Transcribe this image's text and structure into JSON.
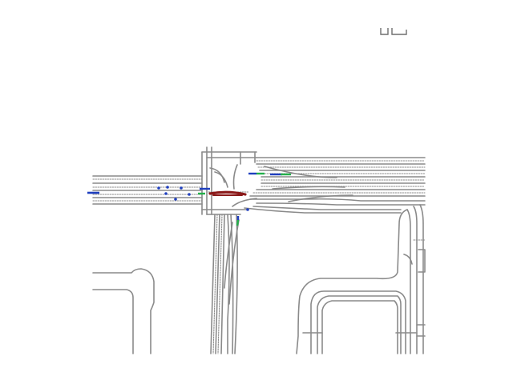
{
  "colors": {
    "background": "#ffffff",
    "lane": "#8a8a8a",
    "lane_dark": "#6e6e6e",
    "ego_trajectory": "#8b1a1a",
    "agent_history": "#1f3fbf",
    "agent_future": "#23b04a"
  },
  "legend": {
    "icon": "legend-bracket-icon"
  },
  "scene": {
    "ego": {
      "label": ""
    },
    "agents": [
      {
        "id": "a1"
      },
      {
        "id": "a2"
      },
      {
        "id": "a3"
      },
      {
        "id": "a4"
      },
      {
        "id": "a5"
      },
      {
        "id": "a6"
      },
      {
        "id": "a7"
      },
      {
        "id": "a8"
      },
      {
        "id": "a9"
      },
      {
        "id": "a10"
      },
      {
        "id": "a11"
      },
      {
        "id": "a12"
      }
    ]
  }
}
